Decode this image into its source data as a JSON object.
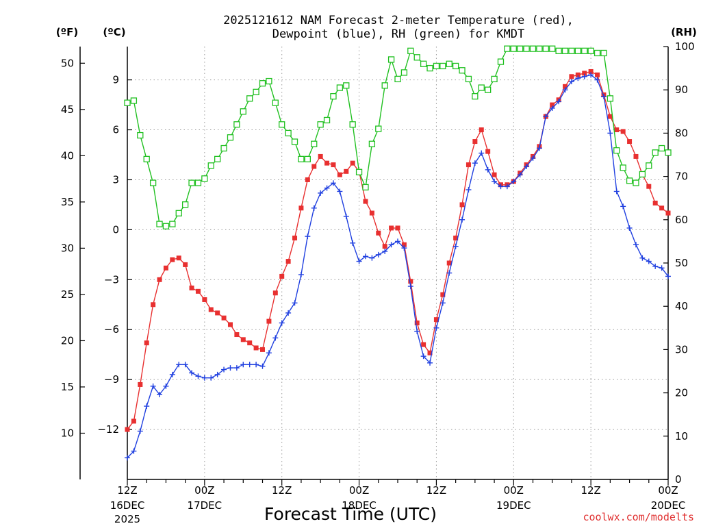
{
  "chart_data": {
    "type": "line",
    "title_line1": "2025121612 NAM Forecast 2-meter Temperature (red),",
    "title_line2": "Dewpoint (blue), RH (green) for KMDT",
    "units": {
      "fahrenheit": "(ºF)",
      "celsius": "(ºC)",
      "rh": "(RH)"
    },
    "xlabel": "Forecast Time (UTC)",
    "credit": "coolwx.com/modelts",
    "x_axis": {
      "range_hours": [
        0,
        84
      ],
      "major_ticks": [
        {
          "hour": 0,
          "label": "12Z",
          "sub1": "16DEC",
          "sub2": "2025"
        },
        {
          "hour": 12,
          "label": "00Z",
          "sub1": "17DEC",
          "sub2": ""
        },
        {
          "hour": 24,
          "label": "12Z",
          "sub1": "",
          "sub2": ""
        },
        {
          "hour": 36,
          "label": "00Z",
          "sub1": "18DEC",
          "sub2": ""
        },
        {
          "hour": 48,
          "label": "12Z",
          "sub1": "",
          "sub2": ""
        },
        {
          "hour": 60,
          "label": "00Z",
          "sub1": "19DEC",
          "sub2": ""
        },
        {
          "hour": 72,
          "label": "12Z",
          "sub1": "",
          "sub2": ""
        },
        {
          "hour": 84,
          "label": "00Z",
          "sub1": "20DEC",
          "sub2": ""
        }
      ]
    },
    "y_celsius": {
      "range": [
        -15,
        11
      ],
      "ticks": [
        -12,
        -9,
        -6,
        -3,
        0,
        3,
        6,
        9
      ]
    },
    "y_fahrenheit": {
      "range": [
        5,
        51.8
      ],
      "ticks": [
        10,
        15,
        20,
        25,
        30,
        35,
        40,
        45,
        50
      ]
    },
    "y_rh": {
      "range": [
        0,
        100
      ],
      "ticks": [
        0,
        10,
        20,
        30,
        40,
        50,
        60,
        70,
        80,
        90,
        100
      ]
    },
    "grid": true,
    "series": [
      {
        "color": "#e83030",
        "marker": "filled-square",
        "axis": "celsius",
        "points": [
          [
            0,
            -12
          ],
          [
            1,
            -11.5
          ],
          [
            2,
            -9.3
          ],
          [
            3,
            -6.8
          ],
          [
            4,
            -4.5
          ],
          [
            5,
            -3
          ],
          [
            6,
            -2.3
          ],
          [
            7,
            -1.8
          ],
          [
            8,
            -1.7
          ],
          [
            9,
            -2.1
          ],
          [
            10,
            -3.5
          ],
          [
            11,
            -3.7
          ],
          [
            12,
            -4.2
          ],
          [
            13,
            -4.8
          ],
          [
            14,
            -5
          ],
          [
            15,
            -5.3
          ],
          [
            16,
            -5.7
          ],
          [
            17,
            -6.3
          ],
          [
            18,
            -6.6
          ],
          [
            19,
            -6.8
          ],
          [
            20,
            -7.1
          ],
          [
            21,
            -7.2
          ],
          [
            22,
            -5.5
          ],
          [
            23,
            -3.8
          ],
          [
            24,
            -2.8
          ],
          [
            25,
            -1.9
          ],
          [
            26,
            -0.5
          ],
          [
            27,
            1.3
          ],
          [
            28,
            3
          ],
          [
            29,
            3.8
          ],
          [
            30,
            4.4
          ],
          [
            31,
            4
          ],
          [
            32,
            3.9
          ],
          [
            33,
            3.3
          ],
          [
            34,
            3.5
          ],
          [
            35,
            4
          ],
          [
            36,
            3.5
          ],
          [
            37,
            1.7
          ],
          [
            38,
            1
          ],
          [
            39,
            -0.2
          ],
          [
            40,
            -1
          ],
          [
            41,
            0.1
          ],
          [
            42,
            0.1
          ],
          [
            43,
            -0.9
          ],
          [
            44,
            -3.1
          ],
          [
            45,
            -5.6
          ],
          [
            46,
            -6.9
          ],
          [
            47,
            -7.4
          ],
          [
            48,
            -5.4
          ],
          [
            49,
            -3.9
          ],
          [
            50,
            -2
          ],
          [
            51,
            -0.5
          ],
          [
            52,
            1.5
          ],
          [
            53,
            3.9
          ],
          [
            54,
            5.3
          ],
          [
            55,
            6
          ],
          [
            56,
            4.7
          ],
          [
            57,
            3.3
          ],
          [
            58,
            2.7
          ],
          [
            59,
            2.7
          ],
          [
            60,
            2.9
          ],
          [
            61,
            3.4
          ],
          [
            62,
            3.9
          ],
          [
            63,
            4.4
          ],
          [
            64,
            5
          ],
          [
            65,
            6.8
          ],
          [
            66,
            7.5
          ],
          [
            67,
            7.8
          ],
          [
            68,
            8.6
          ],
          [
            69,
            9.2
          ],
          [
            70,
            9.3
          ],
          [
            71,
            9.4
          ],
          [
            72,
            9.5
          ],
          [
            73,
            9.3
          ],
          [
            74,
            8.1
          ],
          [
            75,
            6.8
          ],
          [
            76,
            6
          ],
          [
            77,
            5.9
          ],
          [
            78,
            5.3
          ],
          [
            79,
            4.4
          ],
          [
            80,
            3.3
          ],
          [
            81,
            2.6
          ],
          [
            82,
            1.6
          ],
          [
            83,
            1.3
          ],
          [
            84,
            1
          ]
        ]
      },
      {
        "color": "#2040e0",
        "marker": "plus",
        "axis": "celsius",
        "points": [
          [
            0,
            -13.7
          ],
          [
            1,
            -13.3
          ],
          [
            2,
            -12.1
          ],
          [
            3,
            -10.6
          ],
          [
            4,
            -9.4
          ],
          [
            5,
            -9.9
          ],
          [
            6,
            -9.4
          ],
          [
            7,
            -8.7
          ],
          [
            8,
            -8.1
          ],
          [
            9,
            -8.1
          ],
          [
            10,
            -8.6
          ],
          [
            11,
            -8.8
          ],
          [
            12,
            -8.9
          ],
          [
            13,
            -8.9
          ],
          [
            14,
            -8.7
          ],
          [
            15,
            -8.4
          ],
          [
            16,
            -8.3
          ],
          [
            17,
            -8.3
          ],
          [
            18,
            -8.1
          ],
          [
            19,
            -8.1
          ],
          [
            20,
            -8.1
          ],
          [
            21,
            -8.2
          ],
          [
            22,
            -7.4
          ],
          [
            23,
            -6.5
          ],
          [
            24,
            -5.6
          ],
          [
            25,
            -5
          ],
          [
            26,
            -4.4
          ],
          [
            27,
            -2.7
          ],
          [
            28,
            -0.4
          ],
          [
            29,
            1.3
          ],
          [
            30,
            2.2
          ],
          [
            31,
            2.5
          ],
          [
            32,
            2.8
          ],
          [
            33,
            2.3
          ],
          [
            34,
            0.8
          ],
          [
            35,
            -0.8
          ],
          [
            36,
            -1.9
          ],
          [
            37,
            -1.6
          ],
          [
            38,
            -1.7
          ],
          [
            39,
            -1.5
          ],
          [
            40,
            -1.3
          ],
          [
            41,
            -0.9
          ],
          [
            42,
            -0.7
          ],
          [
            43,
            -1.1
          ],
          [
            44,
            -3.4
          ],
          [
            45,
            -6.1
          ],
          [
            46,
            -7.6
          ],
          [
            47,
            -8
          ],
          [
            48,
            -5.9
          ],
          [
            49,
            -4.4
          ],
          [
            50,
            -2.6
          ],
          [
            51,
            -1
          ],
          [
            52,
            0.6
          ],
          [
            53,
            2.4
          ],
          [
            54,
            4
          ],
          [
            55,
            4.6
          ],
          [
            56,
            3.6
          ],
          [
            57,
            2.9
          ],
          [
            58,
            2.6
          ],
          [
            59,
            2.6
          ],
          [
            60,
            2.9
          ],
          [
            61,
            3.3
          ],
          [
            62,
            3.8
          ],
          [
            63,
            4.3
          ],
          [
            64,
            4.9
          ],
          [
            65,
            6.8
          ],
          [
            66,
            7.3
          ],
          [
            67,
            7.7
          ],
          [
            68,
            8.4
          ],
          [
            69,
            8.9
          ],
          [
            70,
            9.1
          ],
          [
            71,
            9.2
          ],
          [
            72,
            9.3
          ],
          [
            73,
            9
          ],
          [
            74,
            8
          ],
          [
            75,
            5.8
          ],
          [
            76,
            2.3
          ],
          [
            77,
            1.4
          ],
          [
            78,
            0.1
          ],
          [
            79,
            -0.9
          ],
          [
            80,
            -1.7
          ],
          [
            81,
            -1.9
          ],
          [
            82,
            -2.2
          ],
          [
            83,
            -2.3
          ],
          [
            84,
            -2.8
          ]
        ]
      },
      {
        "color": "#20c020",
        "marker": "open-square",
        "axis": "rh",
        "points": [
          [
            0,
            87
          ],
          [
            1,
            87.5
          ],
          [
            2,
            79.5
          ],
          [
            3,
            74
          ],
          [
            4,
            68.5
          ],
          [
            5,
            59
          ],
          [
            6,
            58.5
          ],
          [
            7,
            59
          ],
          [
            8,
            61.5
          ],
          [
            9,
            63.5
          ],
          [
            10,
            68.5
          ],
          [
            11,
            68.5
          ],
          [
            12,
            69.5
          ],
          [
            13,
            72.5
          ],
          [
            14,
            74
          ],
          [
            15,
            76.5
          ],
          [
            16,
            79
          ],
          [
            17,
            82
          ],
          [
            18,
            85
          ],
          [
            19,
            88
          ],
          [
            20,
            89.5
          ],
          [
            21,
            91.5
          ],
          [
            22,
            92
          ],
          [
            23,
            87
          ],
          [
            24,
            82
          ],
          [
            25,
            80
          ],
          [
            26,
            78
          ],
          [
            27,
            74
          ],
          [
            28,
            74
          ],
          [
            29,
            77.5
          ],
          [
            30,
            82
          ],
          [
            31,
            83
          ],
          [
            32,
            88.5
          ],
          [
            33,
            90.5
          ],
          [
            34,
            91
          ],
          [
            35,
            82
          ],
          [
            36,
            71
          ],
          [
            37,
            67.5
          ],
          [
            38,
            77.5
          ],
          [
            39,
            81
          ],
          [
            40,
            91
          ],
          [
            41,
            97
          ],
          [
            42,
            92.5
          ],
          [
            43,
            94
          ],
          [
            44,
            99
          ],
          [
            45,
            97.5
          ],
          [
            46,
            96
          ],
          [
            47,
            95
          ],
          [
            48,
            95.5
          ],
          [
            49,
            95.5
          ],
          [
            50,
            96
          ],
          [
            51,
            95.5
          ],
          [
            52,
            94.5
          ],
          [
            53,
            92.5
          ],
          [
            54,
            88.5
          ],
          [
            55,
            90.5
          ],
          [
            56,
            90
          ],
          [
            57,
            92.5
          ],
          [
            58,
            96.5
          ],
          [
            59,
            99.5
          ],
          [
            60,
            99.5
          ],
          [
            61,
            99.5
          ],
          [
            62,
            99.5
          ],
          [
            63,
            99.5
          ],
          [
            64,
            99.5
          ],
          [
            65,
            99.5
          ],
          [
            66,
            99.5
          ],
          [
            67,
            99
          ],
          [
            68,
            99
          ],
          [
            69,
            99
          ],
          [
            70,
            99
          ],
          [
            71,
            99
          ],
          [
            72,
            99
          ],
          [
            73,
            98.5
          ],
          [
            74,
            98.5
          ],
          [
            75,
            88
          ],
          [
            76,
            76
          ],
          [
            77,
            72
          ],
          [
            78,
            69
          ],
          [
            79,
            68.5
          ],
          [
            80,
            70.5
          ],
          [
            81,
            72.5
          ],
          [
            82,
            75.5
          ],
          [
            83,
            76.5
          ],
          [
            84,
            75.5
          ]
        ]
      }
    ]
  }
}
